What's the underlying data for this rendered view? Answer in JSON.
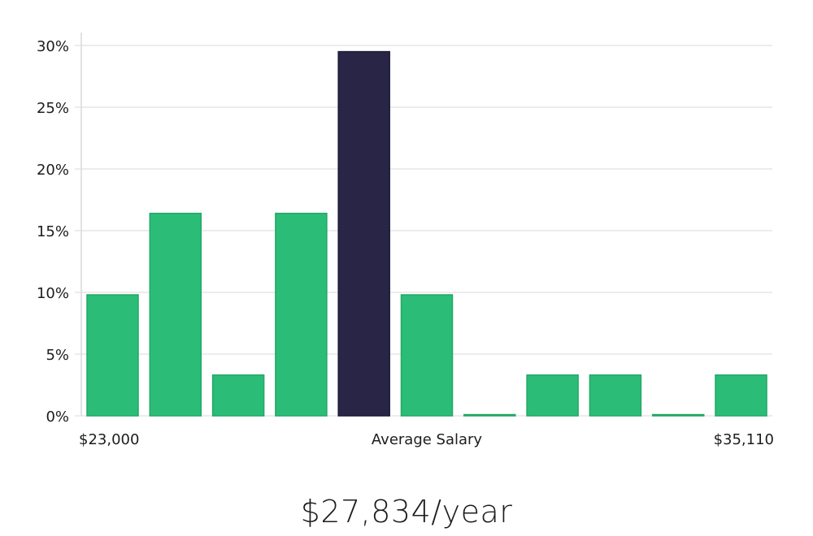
{
  "chart_data": {
    "type": "bar",
    "categories": [
      "1",
      "2",
      "3",
      "4",
      "5",
      "6",
      "7",
      "8",
      "9",
      "10",
      "11"
    ],
    "values": [
      9.8,
      16.4,
      3.3,
      16.4,
      29.5,
      9.8,
      0,
      3.3,
      3.3,
      0,
      3.3
    ],
    "highlight_index": 4,
    "ylim": [
      0,
      30
    ],
    "yticks": [
      "0%",
      "5%",
      "10%",
      "15%",
      "20%",
      "25%",
      "30%"
    ],
    "xlabel_left": "$23,000",
    "xlabel_center": "Average Salary",
    "xlabel_right": "$35,110",
    "grid": true,
    "colors": {
      "bar": "#2bbd77",
      "bar_edge": "#22a866",
      "highlight": "#282546",
      "grid": "#e6e6e6",
      "axis": "#d9d9d9"
    }
  },
  "summary": {
    "salary_text": "$27,834/year"
  }
}
